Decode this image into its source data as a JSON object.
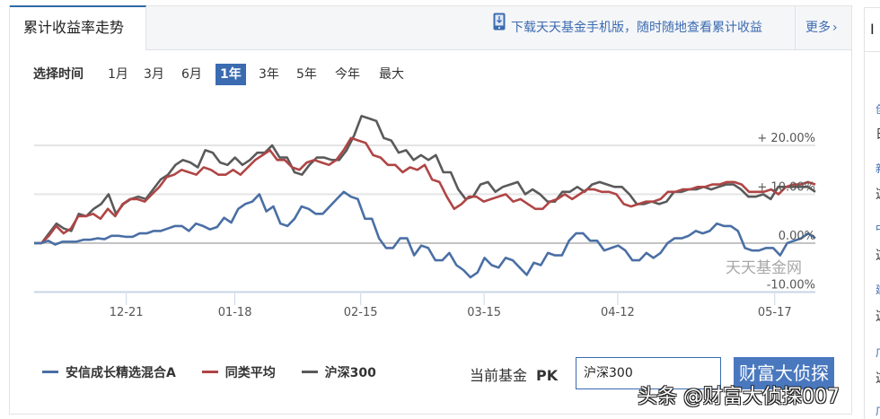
{
  "header": {
    "tab_title": "累计收益率走势",
    "download_text": "下载天天基金手机版，随时随地查看累计收益",
    "more_label": "更多",
    "more_chevron": "›"
  },
  "range": {
    "label": "选择时间",
    "options": [
      "1月",
      "3月",
      "6月",
      "1年",
      "3年",
      "5年",
      "今年",
      "最大"
    ],
    "selected": "1年"
  },
  "legend": {
    "items": [
      {
        "label": "安信成长精选混合A",
        "color": "#4a6fa5"
      },
      {
        "label": "同类平均",
        "color": "#b04545"
      },
      {
        "label": "沪深300",
        "color": "#5a5a5a"
      }
    ]
  },
  "compare": {
    "current_label": "当前基金",
    "pk_label": "PK",
    "input_value": "沪深300",
    "button_label": "财富大侦探"
  },
  "right_panel": {
    "head": "I",
    "items": [
      "创",
      "日",
      "新",
      "这",
      "中",
      "这",
      "建",
      "这",
      "广",
      "这",
      "广"
    ]
  },
  "watermarks": {
    "site": "天天基金网",
    "toutiao": "头条 @财富大侦探007",
    "wechat": "财富大侦探"
  },
  "chart_data": {
    "type": "line",
    "title": "累计收益率走势",
    "xlabel": "",
    "ylabel": "",
    "ylim": [
      -10,
      20
    ],
    "yticks": [
      "+ 20.00%",
      "+ 10.00%",
      "0.00%",
      "-10.00%"
    ],
    "ytick_values": [
      20,
      10,
      0,
      -10
    ],
    "xticks": [
      "12-21",
      "01-18",
      "02-15",
      "03-15",
      "04-12",
      "05-17"
    ],
    "xtick_positions": [
      0.118,
      0.257,
      0.418,
      0.576,
      0.747,
      0.948
    ],
    "grid": true,
    "legend_position": "bottom",
    "series": [
      {
        "name": "沪深300",
        "color": "#5a5a5a",
        "values": [
          0,
          0,
          2,
          4,
          3,
          2.5,
          6,
          5.5,
          7,
          8,
          10,
          6,
          8,
          9,
          9.5,
          9,
          11,
          13,
          14,
          16,
          17,
          16.5,
          15.5,
          19,
          18.5,
          16.5,
          16,
          17.5,
          16,
          17,
          18.5,
          18.5,
          20,
          17.5,
          17.5,
          14.5,
          14,
          16,
          17.5,
          17.5,
          17,
          17,
          19,
          22,
          26,
          25.5,
          25,
          21.5,
          21,
          18.5,
          19,
          17,
          18,
          17,
          18,
          14.5,
          14.5,
          11,
          9,
          9.5,
          12,
          12.5,
          10.5,
          11.5,
          12,
          12.5,
          10,
          11,
          10,
          8.5,
          8.5,
          10.5,
          10.5,
          11.5,
          10.5,
          12,
          12.5,
          12,
          11.5,
          11.5,
          10,
          8,
          8,
          8.5,
          8,
          8.5,
          10.5,
          10.5,
          11,
          11,
          11.5,
          11,
          11.5,
          12,
          12,
          11,
          9.5,
          9.5,
          10,
          9,
          11.5,
          11.5,
          11.5,
          11.5,
          11.5,
          10.5
        ]
      },
      {
        "name": "同类平均",
        "color": "#b04545",
        "values": [
          0,
          0,
          1.5,
          3.5,
          2,
          3,
          5.5,
          5.5,
          6,
          5,
          7,
          5.5,
          8,
          9,
          9,
          8.5,
          10,
          11.5,
          13.5,
          14,
          15,
          14.5,
          14,
          15.5,
          15,
          14,
          14,
          15,
          14,
          15.5,
          17,
          18,
          19,
          17,
          17,
          15.5,
          15,
          16.5,
          17,
          16.5,
          16,
          17,
          19,
          21.5,
          21,
          20.5,
          18,
          17.5,
          16,
          16,
          14.5,
          15.5,
          15,
          16,
          13,
          12.5,
          9.5,
          7,
          8,
          9.5,
          9.5,
          8.5,
          9,
          9.5,
          10,
          8.5,
          9,
          8,
          7,
          7,
          8.5,
          9,
          10,
          9,
          10,
          11,
          11,
          10.5,
          10.5,
          10,
          8,
          7.5,
          8,
          8.5,
          8.5,
          9,
          10.5,
          10.5,
          11,
          11,
          11.5,
          11.5,
          12,
          12,
          12.5,
          12.5,
          12,
          10.5,
          10.5,
          10.5,
          11,
          10,
          11.5,
          12,
          12,
          12.5,
          12
        ]
      },
      {
        "name": "安信成长精选混合A",
        "color": "#4a6fa5",
        "values": [
          0,
          0,
          0.5,
          -0.3,
          0.3,
          0.3,
          0.3,
          0.7,
          0.7,
          1,
          0.8,
          1.5,
          1.5,
          1.3,
          1.3,
          2,
          2,
          2.5,
          2.5,
          3,
          3.5,
          3.5,
          2.5,
          4,
          3.5,
          2.8,
          3.3,
          5.2,
          4.2,
          7,
          8,
          8.5,
          10,
          6.5,
          7.5,
          4,
          3.5,
          5,
          7.5,
          7,
          6,
          6,
          7.5,
          9,
          10.5,
          9.5,
          9,
          5,
          5,
          1,
          -1,
          -1,
          1,
          1,
          -2.5,
          -0.5,
          -1,
          -3.5,
          -3.5,
          -2,
          -4.5,
          -5.5,
          -7,
          -6,
          -3,
          -4.5,
          -5,
          -3,
          -3.5,
          -5,
          -6.5,
          -4,
          -4.5,
          -2,
          -2.5,
          -2.5,
          0.5,
          2,
          2,
          0.5,
          0.5,
          -1.5,
          -1,
          -0.5,
          -1.5,
          -3.5,
          -3.5,
          -2,
          -3,
          -2,
          0,
          1,
          1,
          1.5,
          2.5,
          2,
          2.5,
          4,
          3.5,
          3.5,
          2.5,
          -1,
          -1.5,
          -1.5,
          -1,
          -1,
          -2.5,
          0,
          0.5,
          1,
          2,
          1
        ]
      }
    ]
  }
}
